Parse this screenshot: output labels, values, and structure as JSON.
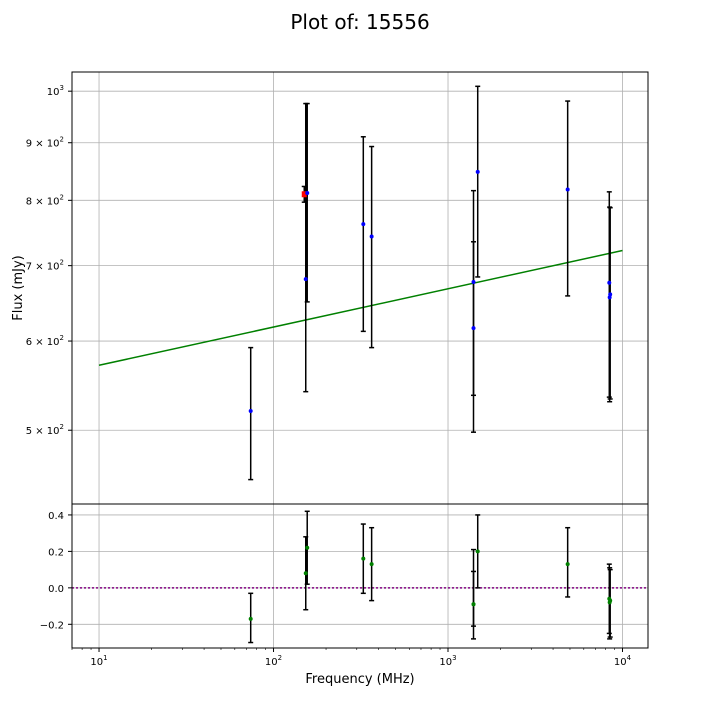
{
  "figure": {
    "title": "Plot of: 15556"
  },
  "chart_data": [
    {
      "type": "scatter",
      "panel": "main",
      "xlabel": "Frequency (MHz)",
      "ylabel": "Flux (mJy)",
      "x_scale": "log",
      "y_scale": "log",
      "xlim": [
        7,
        14000
      ],
      "ylim": [
        430,
        1040
      ],
      "x_ticks": [
        {
          "value": 10,
          "base": "10",
          "exp": "1"
        },
        {
          "value": 100,
          "base": "10",
          "exp": "2"
        },
        {
          "value": 1000,
          "base": "10",
          "exp": "3"
        },
        {
          "value": 10000,
          "base": "10",
          "exp": "4"
        }
      ],
      "y_ticks": [
        {
          "value": 500,
          "mant": "5 × 10",
          "exp": "2"
        },
        {
          "value": 600,
          "mant": "6 × 10",
          "exp": "2"
        },
        {
          "value": 700,
          "mant": "7 × 10",
          "exp": "2"
        },
        {
          "value": 800,
          "mant": "8 × 10",
          "exp": "2"
        },
        {
          "value": 900,
          "mant": "9 × 10",
          "exp": "2"
        },
        {
          "value": 1000,
          "mant": "10",
          "exp": "3"
        }
      ],
      "grid": true,
      "colors": {
        "points": "#0000ff",
        "highlight": "#ff0000",
        "fit": "#008000",
        "errorbar": "#000000"
      },
      "points": [
        {
          "x": 74,
          "y": 520,
          "yerr_lo": 452,
          "yerr_hi": 592
        },
        {
          "x": 150,
          "y": 810,
          "yerr_lo": 797,
          "yerr_hi": 823,
          "highlight": true
        },
        {
          "x": 153,
          "y": 681,
          "yerr_lo": 541,
          "yerr_hi": 975
        },
        {
          "x": 156,
          "y": 812,
          "yerr_lo": 650,
          "yerr_hi": 975
        },
        {
          "x": 327,
          "y": 762,
          "yerr_lo": 612,
          "yerr_hi": 911
        },
        {
          "x": 365,
          "y": 743,
          "yerr_lo": 592,
          "yerr_hi": 893
        },
        {
          "x": 1400,
          "y": 616,
          "yerr_lo": 498,
          "yerr_hi": 735
        },
        {
          "x": 1400,
          "y": 677,
          "yerr_lo": 537,
          "yerr_hi": 816
        },
        {
          "x": 1480,
          "y": 848,
          "yerr_lo": 684,
          "yerr_hi": 1010
        },
        {
          "x": 4850,
          "y": 818,
          "yerr_lo": 658,
          "yerr_hi": 980
        },
        {
          "x": 8400,
          "y": 676,
          "yerr_lo": 535,
          "yerr_hi": 814
        },
        {
          "x": 8440,
          "y": 656,
          "yerr_lo": 530,
          "yerr_hi": 789
        },
        {
          "x": 8500,
          "y": 660,
          "yerr_lo": 533,
          "yerr_hi": 788
        }
      ],
      "fit_line": [
        {
          "x": 10,
          "y": 571
        },
        {
          "x": 10000,
          "y": 722
        }
      ]
    },
    {
      "type": "scatter",
      "panel": "residuals",
      "x_scale": "log",
      "xlim": [
        7,
        14000
      ],
      "ylim": [
        -0.33,
        0.46
      ],
      "y_ticks": [
        {
          "value": 0.4,
          "label": "0.4"
        },
        {
          "value": 0.2,
          "label": "0.2"
        },
        {
          "value": 0.0,
          "label": "0.0"
        },
        {
          "value": -0.2,
          "label": "−0.2"
        }
      ],
      "grid": true,
      "zero_line": 0,
      "colors": {
        "points": "#008000",
        "zero_line": "#800080",
        "errorbar": "#000000"
      },
      "points": [
        {
          "x": 74,
          "y": -0.17,
          "yerr_lo": -0.3,
          "yerr_hi": -0.03
        },
        {
          "x": 153,
          "y": 0.08,
          "yerr_lo": -0.12,
          "yerr_hi": 0.28
        },
        {
          "x": 156,
          "y": 0.22,
          "yerr_lo": 0.02,
          "yerr_hi": 0.42
        },
        {
          "x": 327,
          "y": 0.16,
          "yerr_lo": -0.03,
          "yerr_hi": 0.35
        },
        {
          "x": 365,
          "y": 0.13,
          "yerr_lo": -0.07,
          "yerr_hi": 0.33
        },
        {
          "x": 1400,
          "y": -0.09,
          "yerr_lo": -0.28,
          "yerr_hi": 0.09
        },
        {
          "x": 1400,
          "y": -0.09,
          "yerr_lo": -0.21,
          "yerr_hi": 0.21
        },
        {
          "x": 1480,
          "y": 0.2,
          "yerr_lo": 0.0,
          "yerr_hi": 0.4
        },
        {
          "x": 4850,
          "y": 0.13,
          "yerr_lo": -0.05,
          "yerr_hi": 0.33
        },
        {
          "x": 8400,
          "y": -0.06,
          "yerr_lo": -0.25,
          "yerr_hi": 0.13
        },
        {
          "x": 8440,
          "y": -0.08,
          "yerr_lo": -0.28,
          "yerr_hi": 0.11
        },
        {
          "x": 8500,
          "y": -0.07,
          "yerr_lo": -0.27,
          "yerr_hi": 0.1
        }
      ]
    }
  ]
}
